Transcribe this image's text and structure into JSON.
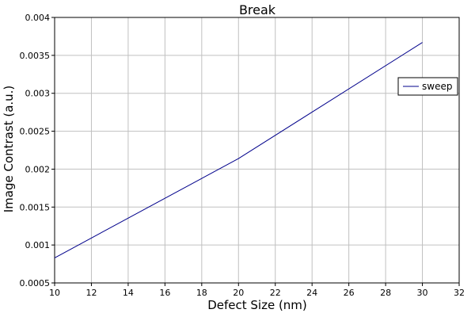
{
  "chart_data": {
    "type": "line",
    "title": "Break",
    "xlabel": "Defect Size (nm)",
    "ylabel": "Image Contrast (a.u.)",
    "xlim": [
      10,
      32
    ],
    "ylim": [
      0.0005,
      0.004
    ],
    "xticks": [
      10,
      12,
      14,
      16,
      18,
      20,
      22,
      24,
      26,
      28,
      30,
      32
    ],
    "xtick_labels": [
      "10",
      "12",
      "14",
      "16",
      "18",
      "20",
      "22",
      "24",
      "26",
      "28",
      "30",
      "32"
    ],
    "yticks": [
      0.0005,
      0.001,
      0.0015,
      0.002,
      0.0025,
      0.003,
      0.0035,
      0.004
    ],
    "ytick_labels": [
      "0.0005",
      "0.001",
      "0.0015",
      "0.002",
      "0.0025",
      "0.003",
      "0.0035",
      "0.004"
    ],
    "grid": true,
    "legend": {
      "placement": "right",
      "entries": [
        "sweep"
      ]
    },
    "series": [
      {
        "name": "sweep",
        "color": "#00008b",
        "x": [
          10,
          20,
          30
        ],
        "y": [
          0.00083,
          0.00214,
          0.00367
        ]
      }
    ]
  }
}
